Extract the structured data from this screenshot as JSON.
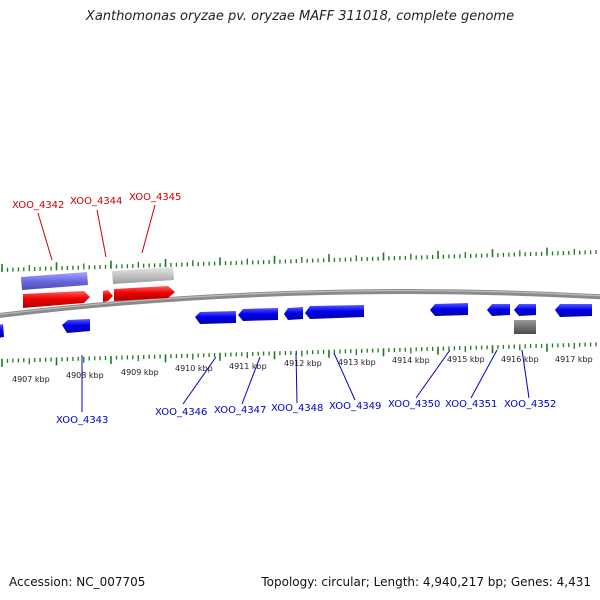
{
  "title": "Xanthomonas oryzae pv. oryzae MAFF 311018, complete genome",
  "footer": {
    "accession": "Accession: NC_007705",
    "summary": "Topology: circular; Length: 4,940,217 bp; Genes: 4,431"
  },
  "colors": {
    "forward_gene": "#ff0000",
    "reverse_gene": "#0000ff",
    "gene_label_red": "#cc0000",
    "gene_label_blue": "#0000cc",
    "tick": "#1a7a1a",
    "other_feature": "#8080ff",
    "gray_feature": "#b0b0b0"
  },
  "scale_labels": [
    "4907 kbp",
    "4908 kbp",
    "4909 kbp",
    "4910 kbp",
    "4911 kbp",
    "4912 kbp",
    "4913 kbp",
    "4914 kbp",
    "4915 kbp",
    "4916 kbp",
    "4917 kbp"
  ],
  "gene_labels": {
    "top": [
      "XOO_4342",
      "XOO_4344",
      "XOO_4345"
    ],
    "bottom": [
      "XOO_4343",
      "XOO_4346",
      "XOO_4347",
      "XOO_4348",
      "XOO_4349",
      "XOO_4350",
      "XOO_4351",
      "XOO_4352"
    ]
  }
}
